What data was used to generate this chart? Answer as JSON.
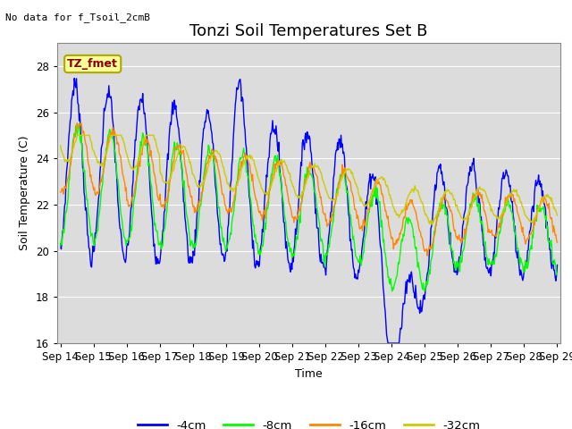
{
  "title": "Tonzi Soil Temperatures Set B",
  "subtitle": "No data for f_Tsoil_2cmB",
  "xlabel": "Time",
  "ylabel": "Soil Temperature (C)",
  "ylim": [
    16,
    29
  ],
  "yticks": [
    16,
    18,
    20,
    22,
    24,
    26,
    28
  ],
  "xtick_labels": [
    "Sep 14",
    "Sep 15",
    "Sep 16",
    "Sep 17",
    "Sep 18",
    "Sep 19",
    "Sep 20",
    "Sep 21",
    "Sep 22",
    "Sep 23",
    "Sep 24",
    "Sep 25",
    "Sep 26",
    "Sep 27",
    "Sep 28",
    "Sep 29"
  ],
  "legend_labels": [
    "-4cm",
    "-8cm",
    "-16cm",
    "-32cm"
  ],
  "line_colors": [
    "#0000ff",
    "#00ff00",
    "#ff8800",
    "#cccc00"
  ],
  "bg_color": "#dcdcdc",
  "box_color": "#ffff99",
  "box_border_color": "#aaaa00",
  "box_text": "TZ_fmet",
  "box_text_color": "#880000",
  "title_fontsize": 13,
  "label_fontsize": 9,
  "tick_fontsize": 8.5
}
